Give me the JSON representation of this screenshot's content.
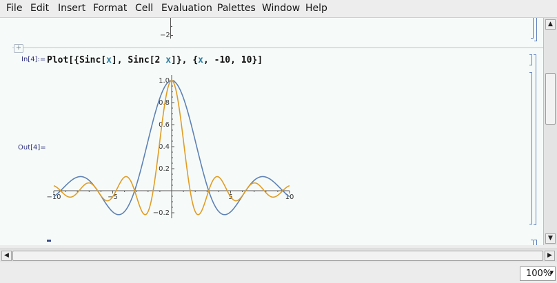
{
  "menu": [
    "File",
    "Edit",
    "Insert",
    "Format",
    "Cell",
    "Evaluation",
    "Palettes",
    "Window",
    "Help"
  ],
  "notebook": {
    "prev_tick": "−2",
    "in_label": "In[4]:=",
    "out_label": "Out[4]=",
    "code_tokens": [
      {
        "t": "Plot[{Sinc[",
        "c": "k"
      },
      {
        "t": "x",
        "c": "v"
      },
      {
        "t": "], Sinc[2 ",
        "c": "k"
      },
      {
        "t": "x",
        "c": "v"
      },
      {
        "t": "]}, {",
        "c": "k"
      },
      {
        "t": "x",
        "c": "v"
      },
      {
        "t": ", -10, 10}]",
        "c": "k"
      }
    ]
  },
  "zoom": "100%",
  "chart_data": {
    "type": "line",
    "x_range": [
      -10,
      10
    ],
    "ylim": [
      -0.25,
      1.05
    ],
    "x_ticks": [
      -10,
      -5,
      5,
      10
    ],
    "y_ticks": [
      -0.2,
      0.2,
      0.4,
      0.6,
      0.8,
      1.0
    ],
    "x_tick_labels": [
      "−10",
      "−5",
      "5",
      "10"
    ],
    "y_tick_labels": [
      "−0.2",
      "0.2",
      "0.4",
      "0.6",
      "0.8",
      "1.0"
    ],
    "grid": false,
    "series": [
      {
        "expr": "Sinc[x]",
        "color": "#5e81b5",
        "k": 1
      },
      {
        "expr": "Sinc[2 x]",
        "color": "#e19c24",
        "k": 2
      }
    ]
  }
}
